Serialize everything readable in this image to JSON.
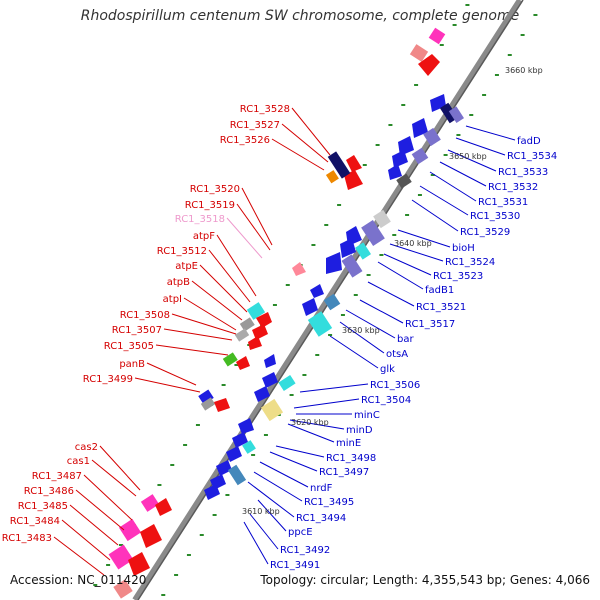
{
  "header": {
    "title": "Rhodospirillum centenum SW chromosome, complete genome"
  },
  "footer": {
    "accession": "Accession: NC_011420",
    "summary": "Topology: circular; Length: 4,355,543 bp; Genes: 4,066"
  },
  "colors": {
    "backbone": "#8a8a8a",
    "left_label": "#d40000",
    "left_label_faded": "#ee99cc",
    "right_label": "#0000cc",
    "tick": "#2a8a2a",
    "gene_red": "#ee1111",
    "gene_pink": "#ff33bb",
    "gene_salmon": "#f08888",
    "gene_green": "#44bb22",
    "gene_blue": "#1e1ee0",
    "gene_navy": "#111166",
    "gene_purple": "#7a72cc",
    "gene_cyan": "#33dddd",
    "gene_steel": "#4488bb",
    "gene_gray": "#999999",
    "gene_khaki": "#eedd88",
    "gene_orange": "#ee8800"
  },
  "scale_labels": [
    "3660 kbp",
    "3650 kbp",
    "3640 kbp",
    "3630 kbp",
    "3620 kbp",
    "3610 kbp"
  ],
  "left_genes": [
    "RC1_3528",
    "RC1_3527",
    "RC1_3526",
    "RC1_3520",
    "RC1_3519",
    "RC1_3518",
    "atpF",
    "RC1_3512",
    "atpE",
    "atpB",
    "atpI",
    "RC1_3508",
    "RC1_3507",
    "RC1_3505",
    "panB",
    "RC1_3499",
    "cas2",
    "cas1",
    "RC1_3487",
    "RC1_3486",
    "RC1_3485",
    "RC1_3484",
    "RC1_3483"
  ],
  "right_genes": [
    "fadD",
    "RC1_3534",
    "RC1_3533",
    "RC1_3532",
    "RC1_3531",
    "RC1_3530",
    "RC1_3529",
    "bioH",
    "RC1_3524",
    "RC1_3523",
    "fadB1",
    "RC1_3521",
    "RC1_3517",
    "bar",
    "otsA",
    "glk",
    "RC1_3506",
    "RC1_3504",
    "minC",
    "minD",
    "minE",
    "RC1_3498",
    "RC1_3497",
    "nrdF",
    "RC1_3495",
    "RC1_3494",
    "ppcE",
    "RC1_3492",
    "RC1_3491"
  ]
}
